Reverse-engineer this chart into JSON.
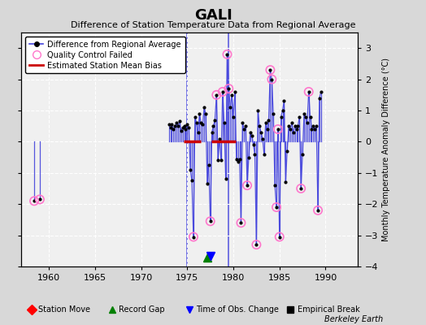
{
  "title": "GALI",
  "subtitle": "Difference of Station Temperature Data from Regional Average",
  "ylabel_right": "Monthly Temperature Anomaly Difference (°C)",
  "xlim": [
    1957,
    1993.5
  ],
  "ylim": [
    -4,
    3.5
  ],
  "yticks": [
    -4,
    -3,
    -2,
    -1,
    0,
    1,
    2,
    3
  ],
  "xticks": [
    1960,
    1965,
    1970,
    1975,
    1980,
    1985,
    1990
  ],
  "background_color": "#d8d8d8",
  "plot_background": "#f0f0f0",
  "grid_color": "#ffffff",
  "line_color": "#4444dd",
  "dot_color": "#000000",
  "qc_color": "#ff77cc",
  "bias_color": "#cc0000",
  "watermark": "Berkeley Earth",
  "data_points": [
    [
      1958.4,
      -1.9
    ],
    [
      1959.0,
      -1.85
    ],
    [
      1973.0,
      0.55
    ],
    [
      1973.17,
      0.45
    ],
    [
      1973.33,
      0.55
    ],
    [
      1973.5,
      0.4
    ],
    [
      1973.67,
      0.5
    ],
    [
      1973.83,
      0.6
    ],
    [
      1974.0,
      0.5
    ],
    [
      1974.17,
      0.65
    ],
    [
      1974.33,
      0.35
    ],
    [
      1974.5,
      0.45
    ],
    [
      1974.67,
      0.5
    ],
    [
      1974.83,
      0.4
    ],
    [
      1975.0,
      0.55
    ],
    [
      1975.17,
      0.45
    ],
    [
      1975.33,
      -0.9
    ],
    [
      1975.5,
      -1.25
    ],
    [
      1975.67,
      -3.05
    ],
    [
      1975.83,
      0.8
    ],
    [
      1976.0,
      0.6
    ],
    [
      1976.17,
      0.3
    ],
    [
      1976.33,
      0.9
    ],
    [
      1976.5,
      0.6
    ],
    [
      1976.67,
      0.55
    ],
    [
      1976.83,
      1.1
    ],
    [
      1977.0,
      0.9
    ],
    [
      1977.17,
      -1.35
    ],
    [
      1977.33,
      -0.75
    ],
    [
      1977.5,
      -2.55
    ],
    [
      1977.67,
      0.3
    ],
    [
      1977.83,
      0.5
    ],
    [
      1978.0,
      0.7
    ],
    [
      1978.17,
      1.5
    ],
    [
      1978.33,
      -0.6
    ],
    [
      1978.5,
      0.1
    ],
    [
      1978.67,
      -0.6
    ],
    [
      1978.83,
      1.6
    ],
    [
      1979.0,
      0.6
    ],
    [
      1979.17,
      -1.2
    ],
    [
      1979.33,
      2.8
    ],
    [
      1979.5,
      1.7
    ],
    [
      1979.67,
      1.1
    ],
    [
      1979.83,
      1.5
    ],
    [
      1980.0,
      0.8
    ],
    [
      1980.17,
      1.6
    ],
    [
      1980.33,
      -0.55
    ],
    [
      1980.5,
      -0.65
    ],
    [
      1980.67,
      -0.55
    ],
    [
      1980.83,
      -2.6
    ],
    [
      1981.0,
      0.6
    ],
    [
      1981.17,
      0.4
    ],
    [
      1981.33,
      0.5
    ],
    [
      1981.5,
      -1.4
    ],
    [
      1981.67,
      -0.5
    ],
    [
      1981.83,
      0.3
    ],
    [
      1982.0,
      0.2
    ],
    [
      1982.17,
      -0.1
    ],
    [
      1982.33,
      -0.4
    ],
    [
      1982.5,
      -3.3
    ],
    [
      1982.67,
      1.0
    ],
    [
      1982.83,
      0.5
    ],
    [
      1983.0,
      0.3
    ],
    [
      1983.17,
      0.1
    ],
    [
      1983.33,
      -0.4
    ],
    [
      1983.5,
      0.6
    ],
    [
      1983.67,
      0.4
    ],
    [
      1983.83,
      0.7
    ],
    [
      1984.0,
      2.3
    ],
    [
      1984.17,
      2.0
    ],
    [
      1984.33,
      0.9
    ],
    [
      1984.5,
      -1.4
    ],
    [
      1984.67,
      -2.1
    ],
    [
      1984.83,
      0.4
    ],
    [
      1985.0,
      -3.05
    ],
    [
      1985.17,
      0.8
    ],
    [
      1985.33,
      1.0
    ],
    [
      1985.5,
      1.3
    ],
    [
      1985.67,
      -1.3
    ],
    [
      1985.83,
      -0.3
    ],
    [
      1986.0,
      0.5
    ],
    [
      1986.17,
      0.4
    ],
    [
      1986.33,
      0.6
    ],
    [
      1986.5,
      0.3
    ],
    [
      1986.67,
      0.5
    ],
    [
      1986.83,
      0.4
    ],
    [
      1987.0,
      0.5
    ],
    [
      1987.17,
      0.8
    ],
    [
      1987.33,
      -1.5
    ],
    [
      1987.5,
      -0.4
    ],
    [
      1987.67,
      0.9
    ],
    [
      1987.83,
      0.8
    ],
    [
      1988.0,
      0.6
    ],
    [
      1988.17,
      1.6
    ],
    [
      1988.33,
      0.8
    ],
    [
      1988.5,
      0.4
    ],
    [
      1988.67,
      0.5
    ],
    [
      1988.83,
      0.4
    ],
    [
      1989.0,
      0.5
    ],
    [
      1989.17,
      -2.2
    ],
    [
      1989.33,
      1.4
    ],
    [
      1989.5,
      1.6
    ]
  ],
  "qc_failed_points": [
    [
      1958.4,
      -1.9
    ],
    [
      1959.0,
      -1.85
    ],
    [
      1975.67,
      -3.05
    ],
    [
      1977.5,
      -2.55
    ],
    [
      1978.17,
      1.5
    ],
    [
      1978.83,
      1.6
    ],
    [
      1979.33,
      2.8
    ],
    [
      1979.5,
      1.7
    ],
    [
      1980.83,
      -2.6
    ],
    [
      1981.5,
      -1.4
    ],
    [
      1982.5,
      -3.3
    ],
    [
      1984.0,
      2.3
    ],
    [
      1984.17,
      2.0
    ],
    [
      1984.67,
      -2.1
    ],
    [
      1984.83,
      0.4
    ],
    [
      1985.0,
      -3.05
    ],
    [
      1987.33,
      -1.5
    ],
    [
      1988.17,
      1.6
    ],
    [
      1989.17,
      -2.2
    ]
  ],
  "bias_segments": [
    {
      "x_start": 1974.6,
      "x_end": 1976.5,
      "y": 0.0
    },
    {
      "x_start": 1977.6,
      "x_end": 1980.3,
      "y": 0.0
    }
  ],
  "time_obs_change_lines": [
    1975.0,
    1979.5
  ],
  "time_obs_change_x": 1977.5,
  "record_gap_x": 1977.2,
  "vertical_lines": [
    {
      "x": 1975.0,
      "color": "#4444dd"
    },
    {
      "x": 1979.5,
      "color": "#4444dd"
    }
  ],
  "purple_vert_lines": [
    1981.0,
    1987.0
  ]
}
